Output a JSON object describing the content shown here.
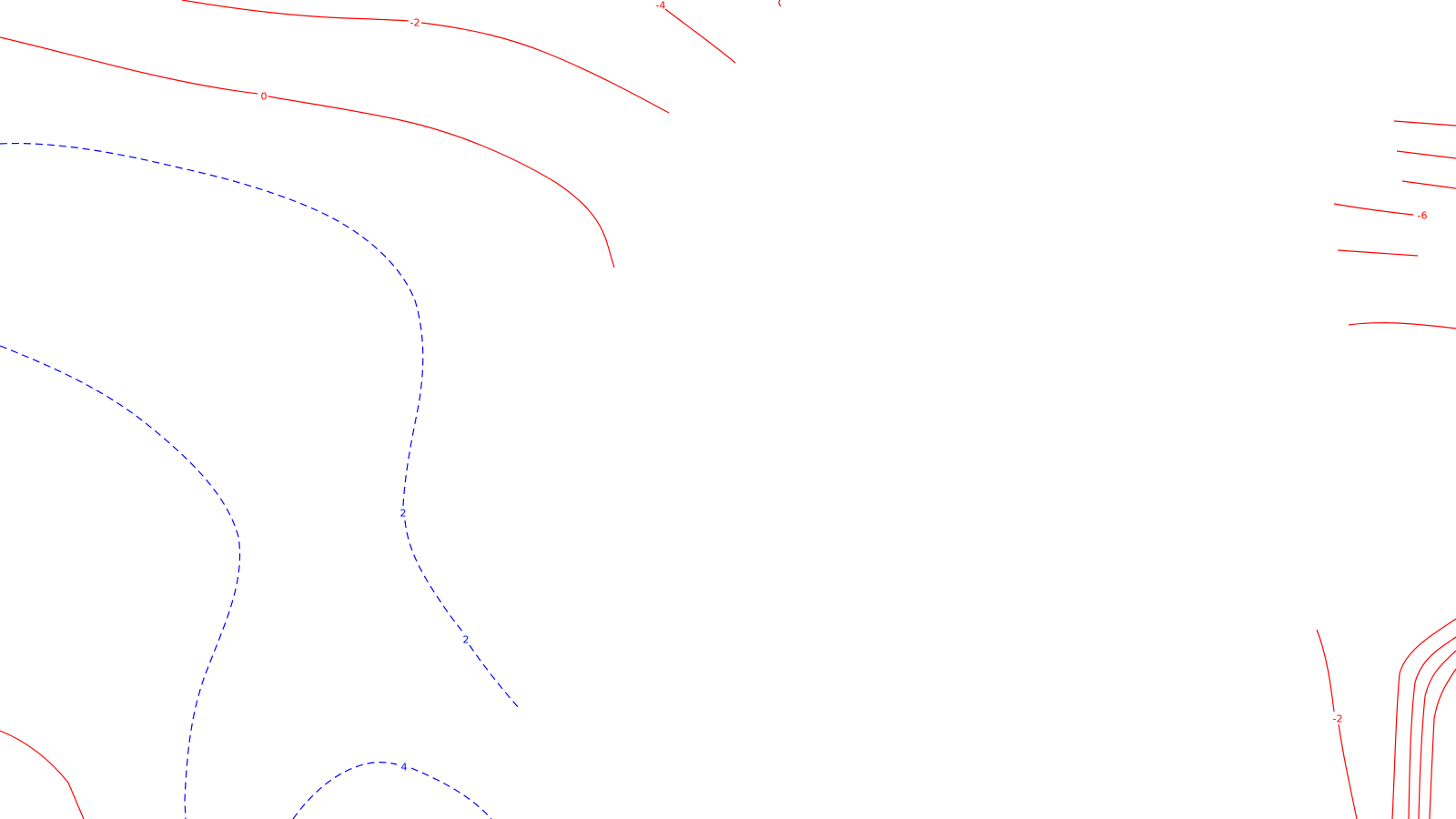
{
  "chart_data": {
    "type": "contour",
    "positive_color": "#0000ff",
    "negative_color": "#ff0000",
    "positive_style": "dashed",
    "negative_style": "solid",
    "contours": [
      {
        "level": 0,
        "label": "0"
      },
      {
        "level": -2,
        "label": "-2"
      },
      {
        "level": -4,
        "label": "-4"
      },
      {
        "level": -6,
        "label": "-6"
      },
      {
        "level": 2,
        "label": "2"
      },
      {
        "level": 4,
        "label": "4"
      }
    ]
  }
}
